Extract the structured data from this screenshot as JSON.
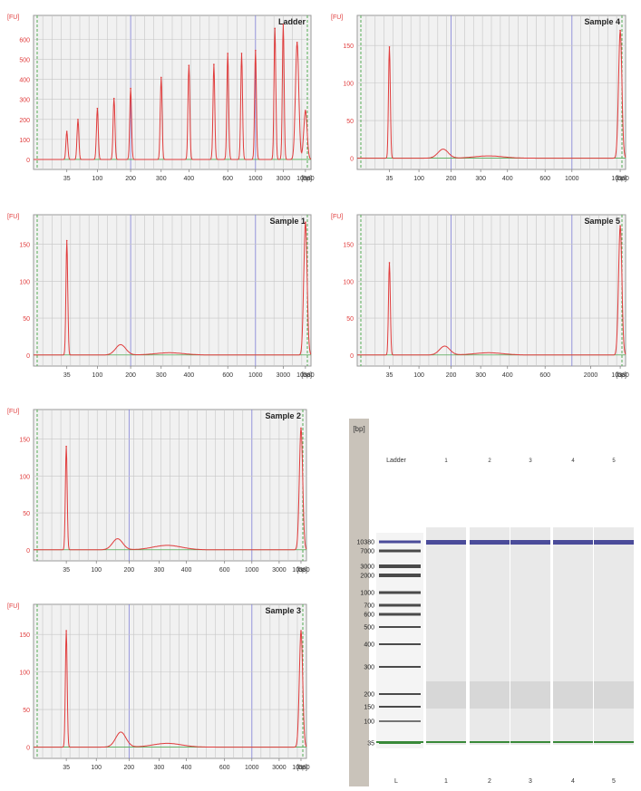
{
  "axis_unit_y": "[FU]",
  "axis_unit_x": "[bp]",
  "colors": {
    "trace": "#e03c3c",
    "grid": "#c6c6c6",
    "marker": "#8080d8",
    "baseline": "#55aa55",
    "plot_bg": "#f1f1f1"
  },
  "chart_data": [
    {
      "type": "line",
      "title": "Ladder",
      "xlabel": "[bp]",
      "ylabel": "[FU]",
      "yticks": [
        0,
        100,
        200,
        300,
        400,
        500,
        600
      ],
      "ylim": [
        -50,
        720
      ],
      "xticks": [
        "35",
        "100",
        "200",
        "300",
        "400",
        "600",
        "1000",
        "3000",
        "10380"
      ],
      "grid": true,
      "peaks": [
        {
          "bp": 35,
          "fu": 140
        },
        {
          "bp": 50,
          "fu": 200
        },
        {
          "bp": 100,
          "fu": 255
        },
        {
          "bp": 150,
          "fu": 305
        },
        {
          "bp": 200,
          "fu": 355
        },
        {
          "bp": 300,
          "fu": 410
        },
        {
          "bp": 400,
          "fu": 470
        },
        {
          "bp": 500,
          "fu": 475
        },
        {
          "bp": 600,
          "fu": 530
        },
        {
          "bp": 700,
          "fu": 530
        },
        {
          "bp": 1000,
          "fu": 545
        },
        {
          "bp": 2000,
          "fu": 655
        },
        {
          "bp": 3000,
          "fu": 675
        },
        {
          "bp": 7000,
          "fu": 585
        },
        {
          "bp": 10380,
          "fu": 245
        }
      ]
    },
    {
      "type": "line",
      "title": "Sample 4",
      "xlabel": "[bp]",
      "ylabel": "[FU]",
      "yticks": [
        0,
        50,
        100,
        150
      ],
      "ylim": [
        -15,
        190
      ],
      "xticks": [
        "35",
        "100",
        "200",
        "300",
        "400",
        "600",
        "1000",
        "10380"
      ],
      "grid": true,
      "peaks": [
        {
          "bp": 35,
          "fu": 148
        },
        {
          "bp": 10380,
          "fu": 170
        }
      ],
      "humps": [
        {
          "bp": 175,
          "fu": 12
        },
        {
          "bp": 330,
          "fu": 3
        }
      ]
    },
    {
      "type": "line",
      "title": "Sample 1",
      "xlabel": "[bp]",
      "ylabel": "[FU]",
      "yticks": [
        0,
        50,
        100,
        150
      ],
      "ylim": [
        -15,
        190
      ],
      "xticks": [
        "35",
        "100",
        "200",
        "300",
        "400",
        "600",
        "1000",
        "3000",
        "10380"
      ],
      "grid": true,
      "peaks": [
        {
          "bp": 35,
          "fu": 155
        },
        {
          "bp": 10380,
          "fu": 180
        }
      ],
      "humps": [
        {
          "bp": 170,
          "fu": 14
        },
        {
          "bp": 330,
          "fu": 3
        }
      ]
    },
    {
      "type": "line",
      "title": "Sample 5",
      "xlabel": "[bp]",
      "ylabel": "[FU]",
      "yticks": [
        0,
        50,
        100,
        150
      ],
      "ylim": [
        -15,
        190
      ],
      "xticks": [
        "35",
        "100",
        "200",
        "300",
        "400",
        "600",
        "2000",
        "10380"
      ],
      "grid": true,
      "peaks": [
        {
          "bp": 35,
          "fu": 125
        },
        {
          "bp": 10380,
          "fu": 175
        }
      ],
      "humps": [
        {
          "bp": 180,
          "fu": 12
        },
        {
          "bp": 330,
          "fu": 3
        }
      ]
    },
    {
      "type": "line",
      "title": "Sample 2",
      "xlabel": "[bp]",
      "ylabel": "[FU]",
      "yticks": [
        0,
        50,
        100,
        150
      ],
      "ylim": [
        -15,
        190
      ],
      "xticks": [
        "35",
        "100",
        "200",
        "300",
        "400",
        "600",
        "1000",
        "3000",
        "10380"
      ],
      "grid": true,
      "peaks": [
        {
          "bp": 35,
          "fu": 140
        },
        {
          "bp": 10380,
          "fu": 165
        }
      ],
      "humps": [
        {
          "bp": 165,
          "fu": 15
        },
        {
          "bp": 330,
          "fu": 6
        }
      ]
    },
    {
      "type": "line",
      "title": "Sample 3",
      "xlabel": "[bp]",
      "ylabel": "[FU]",
      "yticks": [
        0,
        50,
        100,
        150
      ],
      "ylim": [
        -15,
        190
      ],
      "xticks": [
        "35",
        "100",
        "200",
        "300",
        "400",
        "600",
        "1000",
        "3000",
        "10380"
      ],
      "grid": true,
      "peaks": [
        {
          "bp": 35,
          "fu": 155
        },
        {
          "bp": 10380,
          "fu": 155
        }
      ],
      "humps": [
        {
          "bp": 175,
          "fu": 20
        },
        {
          "bp": 330,
          "fu": 5
        }
      ]
    }
  ],
  "gel": {
    "axis_label": "[bp]",
    "lane_headers": [
      "Ladder",
      "1",
      "2",
      "3",
      "4",
      "5"
    ],
    "lane_footers": [
      "L",
      "1",
      "2",
      "3",
      "4",
      "5"
    ],
    "size_labels": [
      "10380",
      "7000",
      "3000",
      "2000",
      "1000",
      "700",
      "600",
      "500",
      "400",
      "300",
      "200",
      "150",
      "100",
      "35"
    ]
  }
}
